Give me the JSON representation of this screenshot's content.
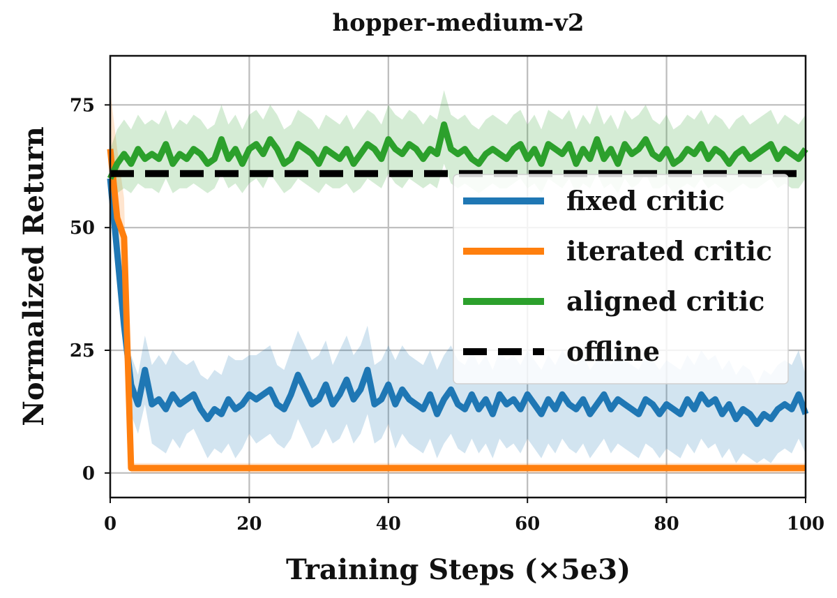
{
  "chart_data": {
    "type": "line",
    "title": "hopper-medium-v2",
    "xlabel": "Training Steps (×5e3)",
    "ylabel": "Normalized Return",
    "xlim": [
      0,
      100
    ],
    "ylim": [
      -5,
      85
    ],
    "xticks": [
      0,
      20,
      40,
      60,
      80,
      100
    ],
    "yticks": [
      0,
      25,
      50,
      75
    ],
    "grid": true,
    "legend_position": "center-right",
    "series": [
      {
        "name": "fixed critic",
        "color": "#1f77b4",
        "style": "solid",
        "x": [
          0,
          2,
          3,
          4,
          5,
          6,
          7,
          8,
          9,
          10,
          11,
          12,
          13,
          14,
          15,
          16,
          17,
          18,
          19,
          20,
          21,
          22,
          23,
          24,
          25,
          26,
          27,
          28,
          29,
          30,
          31,
          32,
          33,
          34,
          35,
          36,
          37,
          38,
          39,
          40,
          41,
          42,
          43,
          44,
          45,
          46,
          47,
          48,
          49,
          50,
          51,
          52,
          53,
          54,
          55,
          56,
          57,
          58,
          59,
          60,
          61,
          62,
          63,
          64,
          65,
          66,
          67,
          68,
          69,
          70,
          71,
          72,
          73,
          74,
          75,
          76,
          77,
          78,
          79,
          80,
          81,
          82,
          83,
          84,
          85,
          86,
          87,
          88,
          89,
          90,
          91,
          92,
          93,
          94,
          95,
          96,
          97,
          98,
          99,
          100
        ],
        "y": [
          60,
          30,
          18,
          14,
          21,
          14,
          15,
          13,
          16,
          14,
          15,
          16,
          13,
          11,
          13,
          12,
          15,
          13,
          14,
          16,
          15,
          16,
          17,
          14,
          13,
          16,
          20,
          17,
          14,
          15,
          18,
          14,
          16,
          19,
          15,
          17,
          21,
          14,
          15,
          18,
          14,
          17,
          15,
          14,
          13,
          16,
          12,
          15,
          17,
          14,
          13,
          16,
          13,
          15,
          12,
          16,
          14,
          15,
          13,
          16,
          14,
          12,
          15,
          13,
          16,
          14,
          13,
          15,
          12,
          14,
          16,
          13,
          15,
          14,
          13,
          12,
          15,
          14,
          12,
          14,
          13,
          12,
          15,
          13,
          16,
          14,
          15,
          12,
          14,
          11,
          13,
          12,
          10,
          12,
          11,
          13,
          14,
          13,
          16,
          12
        ],
        "band_low": [
          56,
          24,
          12,
          8,
          14,
          6,
          5,
          4,
          7,
          5,
          8,
          9,
          6,
          3,
          5,
          4,
          6,
          3,
          5,
          8,
          6,
          7,
          8,
          6,
          5,
          7,
          11,
          8,
          5,
          6,
          9,
          6,
          7,
          10,
          6,
          8,
          12,
          6,
          7,
          10,
          5,
          8,
          6,
          5,
          4,
          7,
          3,
          6,
          8,
          5,
          4,
          7,
          4,
          6,
          3,
          7,
          5,
          6,
          4,
          7,
          5,
          3,
          6,
          4,
          7,
          5,
          4,
          6,
          3,
          5,
          7,
          4,
          6,
          5,
          4,
          3,
          6,
          5,
          3,
          5,
          4,
          3,
          6,
          4,
          7,
          5,
          6,
          3,
          5,
          2,
          4,
          3,
          2,
          3,
          2,
          4,
          5,
          4,
          7,
          4
        ],
        "band_high": [
          64,
          36,
          24,
          20,
          28,
          22,
          24,
          22,
          25,
          23,
          22,
          23,
          20,
          19,
          21,
          20,
          24,
          23,
          23,
          24,
          24,
          25,
          26,
          22,
          21,
          25,
          29,
          26,
          23,
          24,
          27,
          22,
          25,
          28,
          24,
          26,
          30,
          22,
          23,
          26,
          23,
          26,
          24,
          23,
          22,
          25,
          21,
          24,
          26,
          23,
          22,
          25,
          22,
          24,
          21,
          25,
          23,
          24,
          22,
          25,
          23,
          21,
          24,
          22,
          25,
          23,
          22,
          24,
          21,
          23,
          25,
          22,
          24,
          23,
          22,
          21,
          24,
          23,
          21,
          23,
          22,
          21,
          24,
          22,
          25,
          23,
          24,
          21,
          23,
          20,
          22,
          21,
          18,
          21,
          20,
          22,
          23,
          22,
          25,
          20
        ]
      },
      {
        "name": "iterated critic",
        "color": "#ff7f0e",
        "style": "solid",
        "x": [
          0,
          1,
          2,
          3,
          10,
          20,
          40,
          60,
          80,
          100
        ],
        "y": [
          66,
          52,
          48,
          1,
          1,
          1,
          1,
          1,
          1,
          1
        ],
        "band_low": [
          58,
          44,
          40,
          0,
          0,
          0,
          0,
          0,
          0,
          0
        ],
        "band_high": [
          78,
          66,
          56,
          2,
          2,
          2,
          2,
          2,
          2,
          2
        ]
      },
      {
        "name": "aligned critic",
        "color": "#2ca02c",
        "style": "solid",
        "x": [
          0,
          1,
          2,
          3,
          4,
          5,
          6,
          7,
          8,
          9,
          10,
          11,
          12,
          13,
          14,
          15,
          16,
          17,
          18,
          19,
          20,
          21,
          22,
          23,
          24,
          25,
          26,
          27,
          28,
          29,
          30,
          31,
          32,
          33,
          34,
          35,
          36,
          37,
          38,
          39,
          40,
          41,
          42,
          43,
          44,
          45,
          46,
          47,
          48,
          49,
          50,
          51,
          52,
          53,
          54,
          55,
          56,
          57,
          58,
          59,
          60,
          61,
          62,
          63,
          64,
          65,
          66,
          67,
          68,
          69,
          70,
          71,
          72,
          73,
          74,
          75,
          76,
          77,
          78,
          79,
          80,
          81,
          82,
          83,
          84,
          85,
          86,
          87,
          88,
          89,
          90,
          91,
          92,
          93,
          94,
          95,
          96,
          97,
          98,
          99,
          100
        ],
        "y": [
          60,
          63,
          65,
          63,
          66,
          64,
          65,
          64,
          67,
          63,
          65,
          64,
          66,
          65,
          63,
          64,
          68,
          64,
          66,
          63,
          66,
          67,
          65,
          68,
          66,
          63,
          64,
          67,
          66,
          65,
          63,
          66,
          65,
          64,
          66,
          63,
          65,
          67,
          66,
          64,
          68,
          66,
          65,
          67,
          66,
          64,
          66,
          65,
          71,
          66,
          65,
          66,
          64,
          63,
          65,
          66,
          65,
          64,
          66,
          67,
          64,
          66,
          63,
          67,
          66,
          65,
          67,
          63,
          66,
          64,
          68,
          64,
          66,
          63,
          67,
          65,
          66,
          68,
          65,
          64,
          66,
          63,
          64,
          66,
          65,
          67,
          64,
          66,
          65,
          63,
          65,
          66,
          64,
          65,
          66,
          67,
          64,
          66,
          65,
          64,
          66
        ],
        "band_low": [
          56,
          57,
          58,
          57,
          59,
          58,
          58,
          57,
          60,
          57,
          58,
          58,
          59,
          58,
          57,
          58,
          61,
          58,
          59,
          57,
          59,
          60,
          58,
          61,
          59,
          57,
          58,
          60,
          59,
          58,
          57,
          59,
          58,
          58,
          59,
          57,
          58,
          60,
          59,
          58,
          61,
          59,
          58,
          60,
          59,
          58,
          59,
          58,
          63,
          59,
          58,
          59,
          58,
          57,
          58,
          59,
          58,
          58,
          59,
          60,
          58,
          59,
          57,
          60,
          59,
          58,
          60,
          57,
          59,
          58,
          61,
          58,
          59,
          57,
          60,
          58,
          59,
          61,
          58,
          58,
          59,
          57,
          58,
          59,
          58,
          60,
          58,
          59,
          58,
          57,
          58,
          59,
          58,
          58,
          59,
          60,
          58,
          59,
          58,
          58,
          60
        ],
        "band_high": [
          66,
          70,
          72,
          70,
          73,
          71,
          72,
          71,
          74,
          70,
          72,
          71,
          73,
          72,
          70,
          71,
          75,
          71,
          73,
          70,
          73,
          74,
          72,
          75,
          73,
          70,
          71,
          74,
          73,
          72,
          70,
          73,
          72,
          71,
          73,
          70,
          72,
          74,
          73,
          71,
          75,
          73,
          72,
          74,
          73,
          71,
          73,
          72,
          78,
          73,
          72,
          73,
          71,
          70,
          72,
          73,
          72,
          71,
          73,
          74,
          71,
          73,
          70,
          74,
          73,
          72,
          74,
          70,
          73,
          71,
          75,
          71,
          73,
          70,
          74,
          72,
          73,
          75,
          72,
          71,
          73,
          70,
          71,
          73,
          72,
          74,
          71,
          73,
          72,
          70,
          72,
          73,
          71,
          72,
          73,
          74,
          71,
          73,
          72,
          71,
          73
        ]
      },
      {
        "name": "offline",
        "color": "#000000",
        "style": "dashed",
        "x": [
          0,
          100
        ],
        "y": [
          61,
          61
        ]
      }
    ]
  }
}
